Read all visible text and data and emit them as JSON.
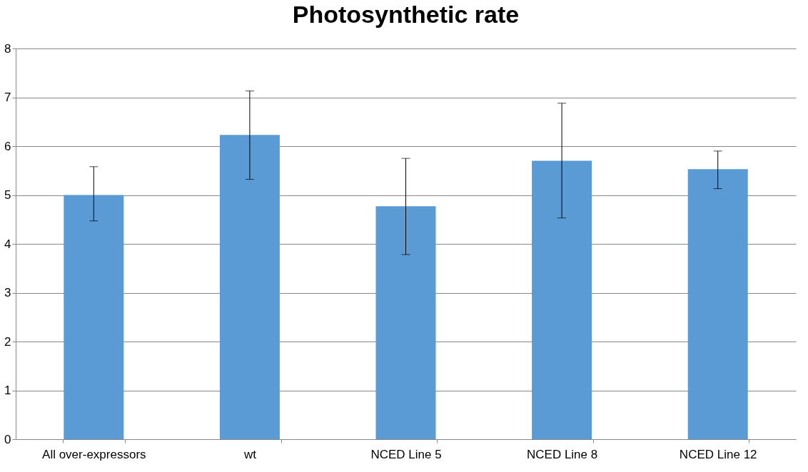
{
  "chart_data": {
    "type": "bar",
    "title": "Photosynthetic rate",
    "categories": [
      "All over-expressors",
      "wt",
      "NCED Line 5",
      "NCED Line 8",
      "NCED Line 12"
    ],
    "values": [
      5.0,
      6.23,
      4.77,
      5.7,
      5.53
    ],
    "errors": [
      [
        4.47,
        5.58
      ],
      [
        5.32,
        7.13
      ],
      [
        3.78,
        5.75
      ],
      [
        4.53,
        6.88
      ],
      [
        5.13,
        5.9
      ]
    ],
    "color": "#5b9bd5",
    "ylim": [
      0,
      8
    ],
    "yticks": [
      0,
      1,
      2,
      3,
      4,
      5,
      6,
      7,
      8
    ],
    "grid": "y"
  }
}
